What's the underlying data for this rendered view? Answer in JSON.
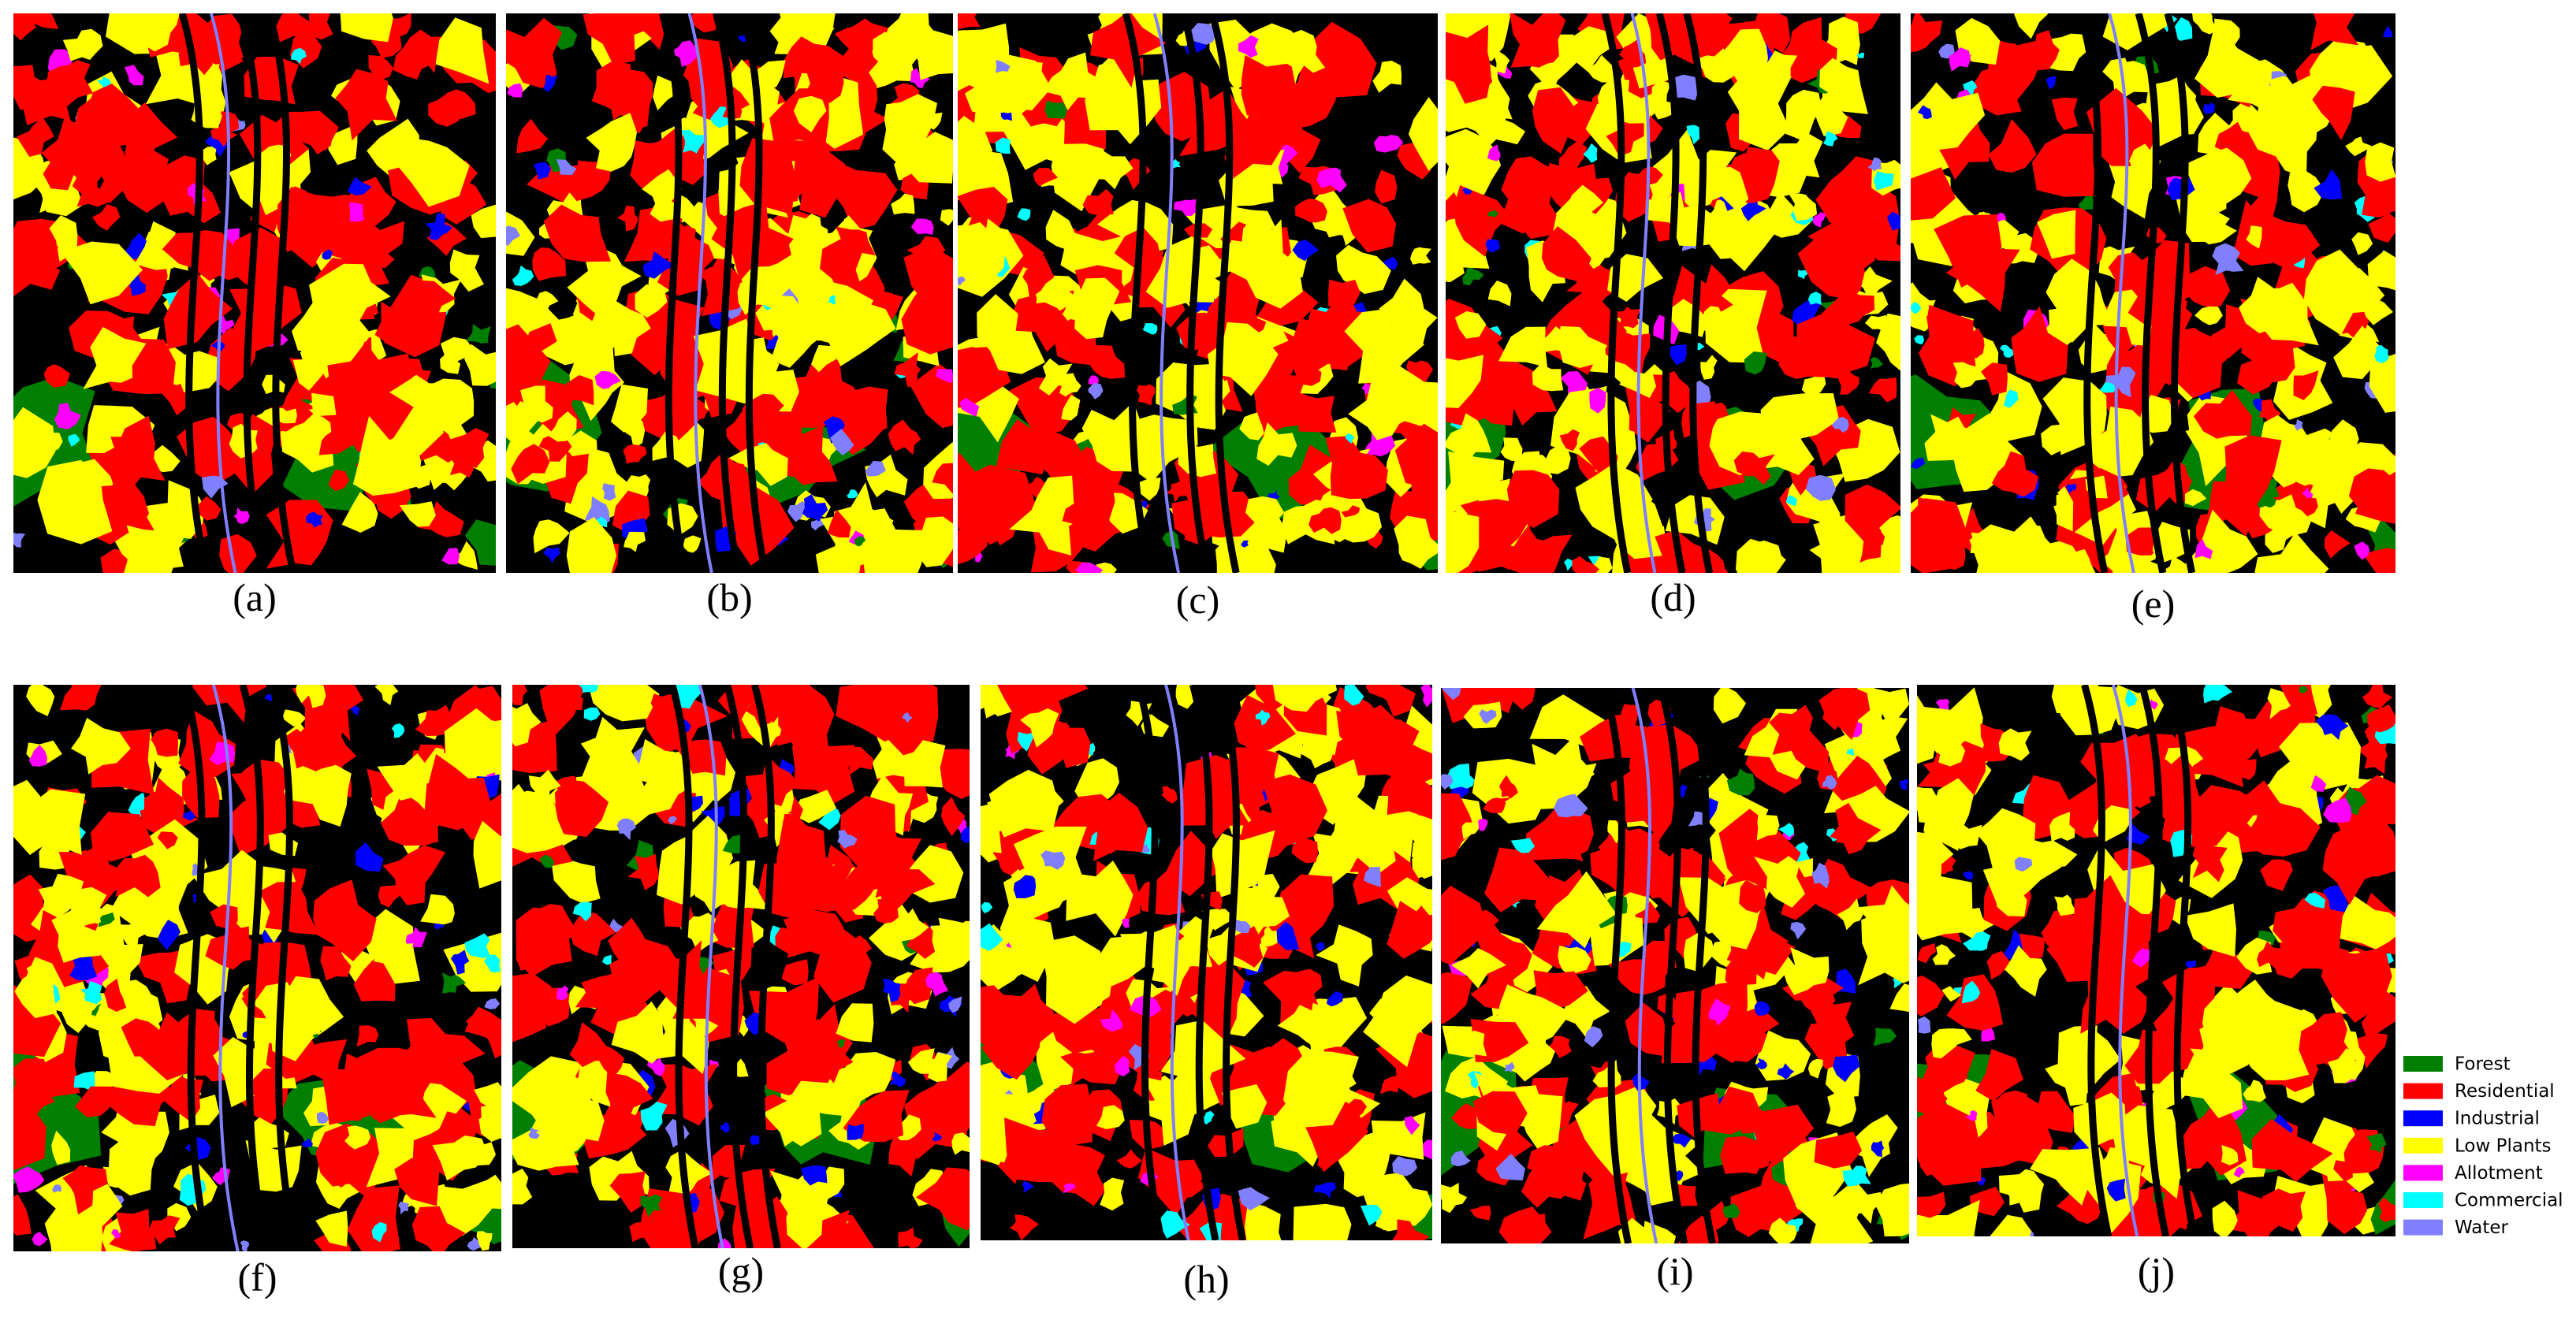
{
  "panels": [
    {
      "label": "(a)"
    },
    {
      "label": "(b)"
    },
    {
      "label": "(c)"
    },
    {
      "label": "(d)"
    },
    {
      "label": "(e)"
    },
    {
      "label": "(f)"
    },
    {
      "label": "(g)"
    },
    {
      "label": "(h)"
    },
    {
      "label": "(i)"
    },
    {
      "label": "(j)"
    }
  ],
  "legend": [
    {
      "name": "Forest",
      "color": "#007f00"
    },
    {
      "name": "Residential",
      "color": "#ff0000"
    },
    {
      "name": "Industrial",
      "color": "#0000ff"
    },
    {
      "name": "Low Plants",
      "color": "#ffff00"
    },
    {
      "name": "Allotment",
      "color": "#ff00ff"
    },
    {
      "name": "Commercial",
      "color": "#00ffff"
    },
    {
      "name": "Water",
      "color": "#8080ff"
    }
  ]
}
